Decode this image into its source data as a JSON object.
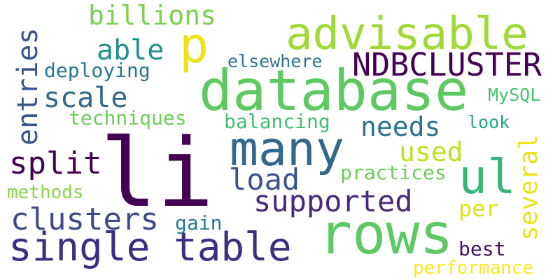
{
  "words": [
    {
      "text": "li",
      "color": "#440154"
    },
    {
      "text": "database",
      "color": "#5ec962"
    },
    {
      "text": "rows",
      "color": "#5ec962"
    },
    {
      "text": "single table",
      "color": "#3b2f80"
    },
    {
      "text": "many",
      "color": "#31688e"
    },
    {
      "text": "advisable",
      "color": "#a0da39"
    },
    {
      "text": "ul",
      "color": "#35b779"
    },
    {
      "text": "NDBCLUSTER",
      "color": "#440154"
    },
    {
      "text": "p",
      "color": "#e8e419"
    },
    {
      "text": "billions",
      "color": "#7ad151"
    },
    {
      "text": "entries",
      "color": "#39568c"
    },
    {
      "text": "able",
      "color": "#21918c"
    },
    {
      "text": "scale",
      "color": "#31688e"
    },
    {
      "text": "split",
      "color": "#440154"
    },
    {
      "text": "clusters",
      "color": "#3e4a89"
    },
    {
      "text": "supported",
      "color": "#482878"
    },
    {
      "text": "load",
      "color": "#3b528b"
    },
    {
      "text": "needs",
      "color": "#2c728e"
    },
    {
      "text": "used",
      "color": "#bddf26"
    },
    {
      "text": "several",
      "color": "#e8e419"
    },
    {
      "text": "per",
      "color": "#dde318"
    },
    {
      "text": "deploying",
      "color": "#2a788e"
    },
    {
      "text": "elsewhere",
      "color": "#2c728e"
    },
    {
      "text": "techniques",
      "color": "#6ccd5a"
    },
    {
      "text": "balancing",
      "color": "#44bf70"
    },
    {
      "text": "methods",
      "color": "#86d549"
    },
    {
      "text": "practices",
      "color": "#6ccd5a"
    },
    {
      "text": "MySQL",
      "color": "#4ac16d"
    },
    {
      "text": "look",
      "color": "#21a685"
    },
    {
      "text": "gain",
      "color": "#2a788e"
    },
    {
      "text": "best",
      "color": "#471164"
    },
    {
      "text": "performance",
      "color": "#fde725"
    }
  ]
}
